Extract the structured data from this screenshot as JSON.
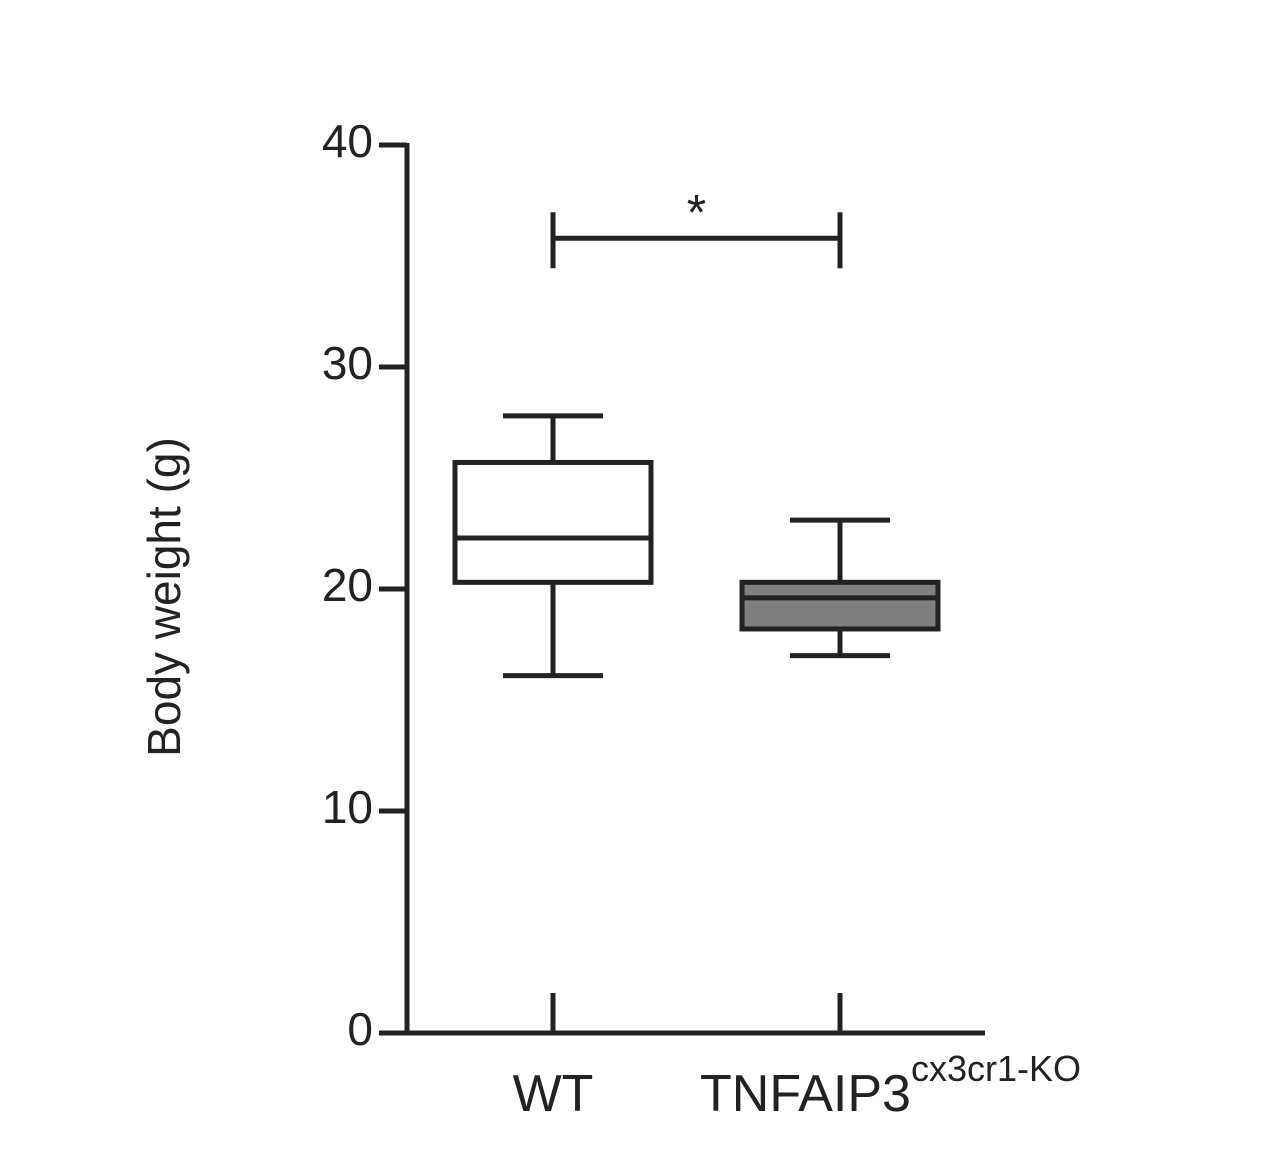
{
  "chart_data": {
    "type": "box",
    "y_label": "Body weight (g)",
    "ylim": [
      0,
      40
    ],
    "yticks": [
      0,
      10,
      20,
      30,
      40
    ],
    "series": [
      {
        "name": "WT",
        "color": "#ffffff",
        "min": 16.1,
        "q1": 20.3,
        "median": 22.3,
        "q3": 25.7,
        "max": 27.8
      },
      {
        "name": "TNFAIP3",
        "superscript": "cx3cr1-KO",
        "color": "#7f7f7f",
        "min": 17.0,
        "q1": 18.2,
        "median": 19.6,
        "q3": 20.3,
        "max": 23.1
      }
    ],
    "annotation": {
      "text": "*",
      "y": 35.8
    }
  }
}
